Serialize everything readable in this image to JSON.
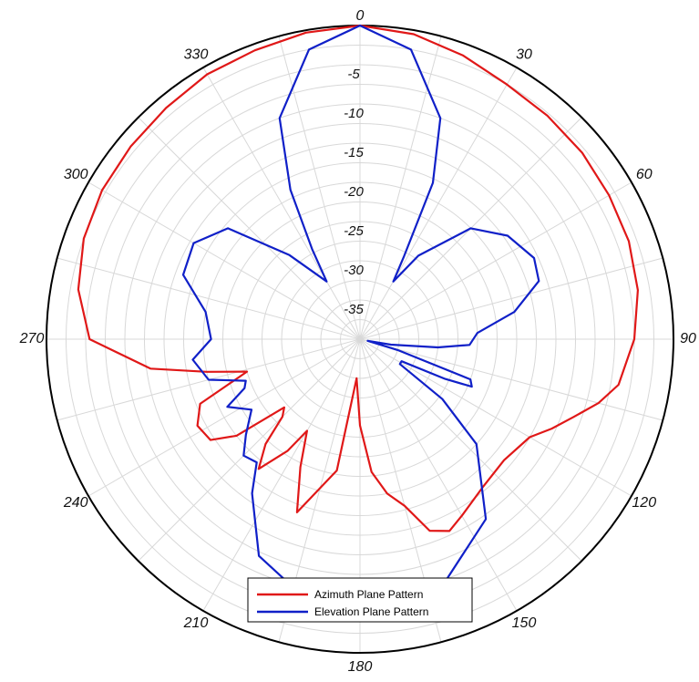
{
  "chart_data": {
    "type": "polar-line",
    "title": "",
    "angle_direction": "clockwise",
    "angle_zero": "top",
    "angular_ticks": [
      0,
      30,
      60,
      90,
      120,
      150,
      180,
      210,
      240,
      270,
      300,
      330
    ],
    "radial_ticks": [
      -5,
      -10,
      -15,
      -20,
      -25,
      -30,
      -35
    ],
    "rlim": [
      -40,
      0
    ],
    "grid": true,
    "legend_position": "bottom-center",
    "series": [
      {
        "name": "Azimuth Plane Pattern",
        "color": "#e01818",
        "points": [
          [
            0,
            0
          ],
          [
            10,
            -0.5
          ],
          [
            20,
            -1.5
          ],
          [
            30,
            -2.5
          ],
          [
            40,
            -2.8
          ],
          [
            50,
            -3.0
          ],
          [
            60,
            -3.3
          ],
          [
            70,
            -3.5
          ],
          [
            80,
            -4.0
          ],
          [
            90,
            -5.0
          ],
          [
            100,
            -6.5
          ],
          [
            105,
            -8.5
          ],
          [
            110,
            -11.0
          ],
          [
            115,
            -13.0
          ],
          [
            120,
            -15.0
          ],
          [
            130,
            -16.0
          ],
          [
            140,
            -15.5
          ],
          [
            150,
            -14.0
          ],
          [
            155,
            -13.0
          ],
          [
            160,
            -14.0
          ],
          [
            165,
            -18.0
          ],
          [
            170,
            -20.0
          ],
          [
            175,
            -23.0
          ],
          [
            180,
            -29.0
          ],
          [
            185,
            -35.0
          ],
          [
            190,
            -23.0
          ],
          [
            200,
            -16.5
          ],
          [
            205,
            -22.0
          ],
          [
            210,
            -26.5
          ],
          [
            213,
            -23.0
          ],
          [
            218,
            -19.0
          ],
          [
            222,
            -22.0
          ],
          [
            225,
            -26.0
          ],
          [
            228,
            -27.0
          ],
          [
            232,
            -20.0
          ],
          [
            236,
            -17.0
          ],
          [
            242,
            -16.5
          ],
          [
            248,
            -18.0
          ],
          [
            254,
            -25.0
          ],
          [
            258,
            -20.0
          ],
          [
            262,
            -13.0
          ],
          [
            270,
            -5.5
          ],
          [
            280,
            -3.5
          ],
          [
            290,
            -2.5
          ],
          [
            300,
            -2.0
          ],
          [
            310,
            -1.8
          ],
          [
            320,
            -1.5
          ],
          [
            330,
            -1.0
          ],
          [
            340,
            -0.8
          ],
          [
            350,
            -0.3
          ],
          [
            360,
            0
          ]
        ]
      },
      {
        "name": "Elevation Plane Pattern",
        "color": "#1020c8",
        "points": [
          [
            0,
            0
          ],
          [
            10,
            -2.5
          ],
          [
            20,
            -10.0
          ],
          [
            25,
            -18.0
          ],
          [
            28,
            -28.0
          ],
          [
            30,
            -31.5
          ],
          [
            35,
            -27.0
          ],
          [
            45,
            -20.0
          ],
          [
            55,
            -17.0
          ],
          [
            65,
            -15.5
          ],
          [
            72,
            -16.0
          ],
          [
            80,
            -20.0
          ],
          [
            87,
            -25.0
          ],
          [
            93,
            -26.0
          ],
          [
            96,
            -30.0
          ],
          [
            100,
            -36.0
          ],
          [
            102,
            -39.0
          ],
          [
            106,
            -35.0
          ],
          [
            110,
            -25.0
          ],
          [
            113,
            -24.5
          ],
          [
            115,
            -28.0
          ],
          [
            118,
            -34.0
          ],
          [
            122,
            -34.0
          ],
          [
            126,
            -27.0
          ],
          [
            132,
            -20.0
          ],
          [
            145,
            -12.0
          ],
          [
            160,
            -7.5
          ],
          [
            170,
            -6.0
          ],
          [
            180,
            -5.0
          ],
          [
            190,
            -5.5
          ],
          [
            205,
            -9.5
          ],
          [
            215,
            -16.0
          ],
          [
            220,
            -19.5
          ],
          [
            225,
            -19.0
          ],
          [
            230,
            -21.0
          ],
          [
            237,
            -23.5
          ],
          [
            243,
            -21.0
          ],
          [
            247,
            -24.0
          ],
          [
            250,
            -24.5
          ],
          [
            255,
            -20.0
          ],
          [
            263,
            -18.5
          ],
          [
            270,
            -21.0
          ],
          [
            280,
            -20.0
          ],
          [
            290,
            -16.0
          ],
          [
            300,
            -15.5
          ],
          [
            310,
            -18.0
          ],
          [
            320,
            -26.0
          ],
          [
            330,
            -31.5
          ],
          [
            332,
            -27.0
          ],
          [
            335,
            -19.0
          ],
          [
            340,
            -10.0
          ],
          [
            350,
            -2.5
          ],
          [
            360,
            0
          ]
        ]
      }
    ]
  }
}
